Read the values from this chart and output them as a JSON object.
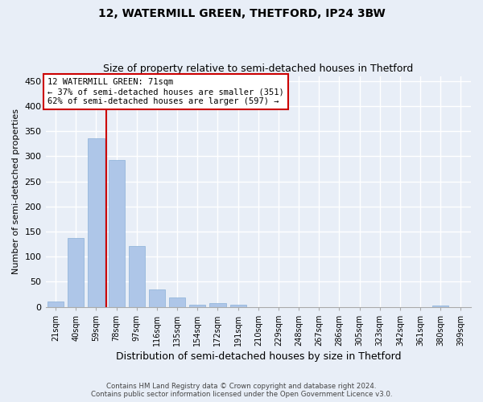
{
  "title1": "12, WATERMILL GREEN, THETFORD, IP24 3BW",
  "title2": "Size of property relative to semi-detached houses in Thetford",
  "xlabel": "Distribution of semi-detached houses by size in Thetford",
  "ylabel": "Number of semi-detached properties",
  "footer1": "Contains HM Land Registry data © Crown copyright and database right 2024.",
  "footer2": "Contains public sector information licensed under the Open Government Licence v3.0.",
  "categories": [
    "21sqm",
    "40sqm",
    "59sqm",
    "78sqm",
    "97sqm",
    "116sqm",
    "135sqm",
    "154sqm",
    "172sqm",
    "191sqm",
    "210sqm",
    "229sqm",
    "248sqm",
    "267sqm",
    "286sqm",
    "305sqm",
    "323sqm",
    "342sqm",
    "361sqm",
    "380sqm",
    "399sqm"
  ],
  "values": [
    10,
    138,
    336,
    293,
    121,
    34,
    18,
    5,
    7,
    5,
    0,
    0,
    0,
    0,
    0,
    0,
    0,
    0,
    0,
    3,
    0
  ],
  "bar_color": "#aec6e8",
  "bar_edge_color": "#8ab0d8",
  "background_color": "#e8eef7",
  "grid_color": "#ffffff",
  "vline_x": 2.5,
  "vline_color": "#cc0000",
  "ylim": [
    0,
    460
  ],
  "yticks": [
    0,
    50,
    100,
    150,
    200,
    250,
    300,
    350,
    400,
    450
  ],
  "annotation_title": "12 WATERMILL GREEN: 71sqm",
  "annotation_line1": "← 37% of semi-detached houses are smaller (351)",
  "annotation_line2": "62% of semi-detached houses are larger (597) →",
  "annotation_box_color": "#ffffff",
  "annotation_box_edge": "#cc0000"
}
